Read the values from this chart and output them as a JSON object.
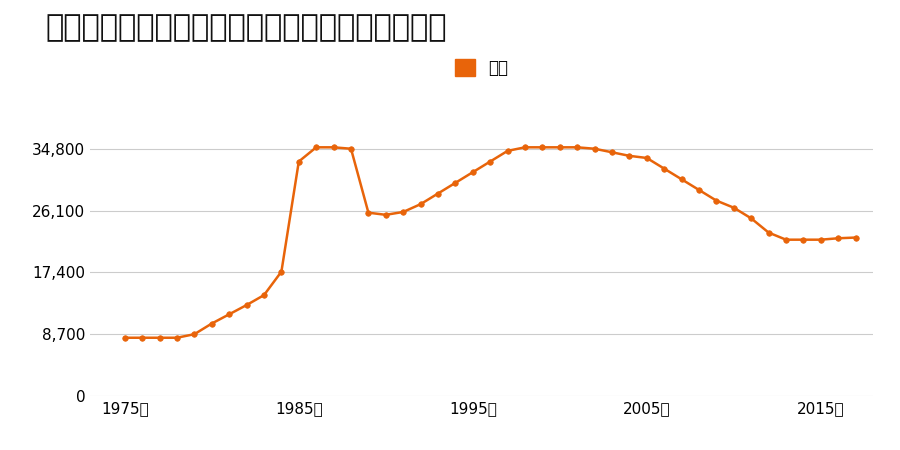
{
  "title": "北海道帯広市南町東５条南６丁目６番の地価推移",
  "legend_label": "価格",
  "xlabel_years": [
    1975,
    1985,
    1995,
    2005,
    2015
  ],
  "yticks": [
    0,
    8700,
    17400,
    26100,
    34800
  ],
  "ylim": [
    0,
    38000
  ],
  "xlim": [
    1973,
    2018
  ],
  "line_color": "#E8640A",
  "marker_color": "#E8640A",
  "bg_color": "#ffffff",
  "grid_color": "#cccccc",
  "years": [
    1975,
    1976,
    1977,
    1978,
    1979,
    1980,
    1981,
    1982,
    1983,
    1984,
    1985,
    1986,
    1987,
    1988,
    1989,
    1990,
    1991,
    1992,
    1993,
    1994,
    1995,
    1996,
    1997,
    1998,
    1999,
    2000,
    2001,
    2002,
    2003,
    2004,
    2005,
    2006,
    2007,
    2008,
    2009,
    2010,
    2011,
    2012,
    2013,
    2014,
    2015,
    2016,
    2017
  ],
  "values": [
    8200,
    8200,
    8200,
    8200,
    8700,
    10200,
    11500,
    12800,
    14200,
    17500,
    33000,
    35000,
    35000,
    34800,
    25800,
    25500,
    25900,
    27000,
    28500,
    30000,
    31500,
    33000,
    34500,
    35000,
    35000,
    35000,
    35000,
    34800,
    34300,
    33800,
    33500,
    32000,
    30500,
    29000,
    27500,
    26500,
    25000,
    23000,
    22000,
    22000,
    22000,
    22200,
    22300
  ]
}
